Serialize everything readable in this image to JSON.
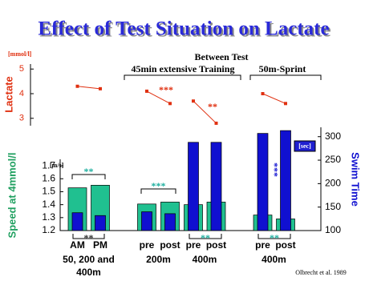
{
  "title": "Effect of Test Situation on Lactate",
  "header": "Between Test",
  "phases": [
    "45min extensive Training",
    "50m-Sprint"
  ],
  "source": "Olbrecht et al. 1989",
  "chart_data": [
    {
      "type": "line",
      "ylabel": "Lactate",
      "y_unit": "[mmol/l]",
      "color": "#e03010",
      "values": [
        4.3,
        4.2,
        4.1,
        3.6,
        3.7,
        2.8,
        4.0,
        3.6
      ],
      "ylim": [
        2.7,
        5.3
      ],
      "yticks": [
        3,
        4,
        5
      ],
      "annotations": [
        {
          "text": "***",
          "color": "#e03010"
        },
        {
          "text": "**",
          "color": "#e03010"
        }
      ]
    },
    {
      "type": "bar",
      "ylabel": "Speed at 4mmol/l",
      "y_unit": "[m/s]",
      "y2label": "Swim Time",
      "y2_unit": "[sec]",
      "categories": [
        "AM",
        "PM",
        "pre",
        "post",
        "pre",
        "post",
        "pre",
        "post"
      ],
      "group_labels": [
        [
          "50, 200 and",
          "400m"
        ],
        [
          "200m"
        ],
        [
          "400m"
        ],
        [
          "400m"
        ]
      ],
      "series": [
        {
          "color": "#20c090",
          "values": [
            1.53,
            1.55,
            1.405,
            1.42,
            1.4,
            1.42,
            1.32,
            1.29
          ]
        },
        {
          "color": "#1010d0",
          "axis": "y2",
          "values": [
            138,
            132,
            140,
            136,
            288,
            288,
            307,
            313
          ]
        }
      ],
      "ylim": [
        1.2,
        1.75
      ],
      "yticks": [
        1.2,
        1.3,
        1.4,
        1.5,
        1.6,
        1.7
      ],
      "y2lim": [
        100,
        320
      ],
      "y2ticks": [
        100,
        150,
        200,
        250,
        300
      ],
      "annotations": [
        {
          "text": "**",
          "color": "#20b0a0"
        },
        {
          "text": "**",
          "color": "#333333"
        },
        {
          "text": "***",
          "color": "#20b0a0"
        },
        {
          "text": "**",
          "color": "#20b0a0"
        },
        {
          "text": "**",
          "color": "#20b0a0"
        },
        {
          "text": "***",
          "color": "#1010d0"
        }
      ]
    }
  ]
}
